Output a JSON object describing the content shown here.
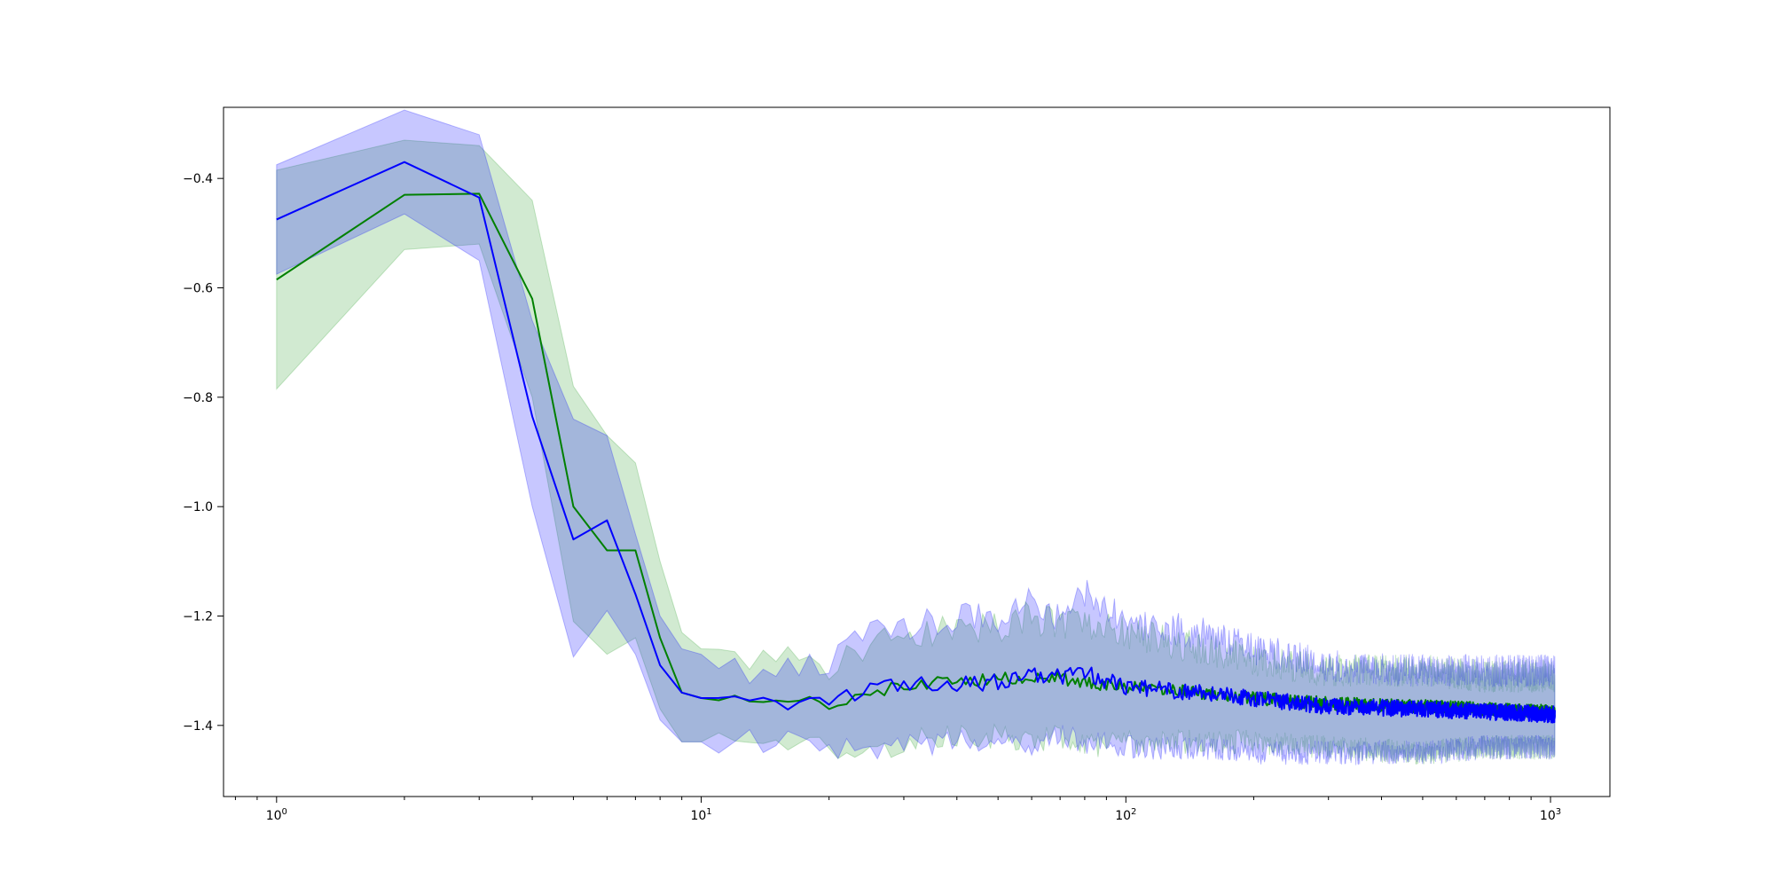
{
  "chart_data": {
    "type": "line",
    "title": "",
    "xlabel": "",
    "ylabel": "",
    "x_scale": "log",
    "xlim": [
      0.75,
      1380
    ],
    "ylim": [
      -1.53,
      -0.27
    ],
    "grid": false,
    "legend": "none",
    "x_ticks": [
      {
        "base": "10",
        "exp": "0",
        "value": 1
      },
      {
        "base": "10",
        "exp": "1",
        "value": 10
      },
      {
        "base": "10",
        "exp": "2",
        "value": 100
      },
      {
        "base": "10",
        "exp": "3",
        "value": 1000
      }
    ],
    "y_ticks": [
      {
        "label": "−0.4",
        "value": -0.4
      },
      {
        "label": "−0.6",
        "value": -0.6
      },
      {
        "label": "−0.8",
        "value": -0.8
      },
      {
        "label": "−1.0",
        "value": -1.0
      },
      {
        "label": "−1.2",
        "value": -1.2
      },
      {
        "label": "−1.4",
        "value": -1.4
      }
    ],
    "x_range": [
      1,
      1024
    ],
    "series": [
      {
        "color": "#008000",
        "band_color": "#2ca02c",
        "anchors_x": [
          1,
          2,
          3,
          4,
          5,
          6,
          7,
          8,
          9,
          10,
          12,
          15,
          20,
          25,
          30,
          40,
          50,
          60,
          70,
          80,
          100,
          150,
          200,
          300,
          500,
          700,
          1024
        ],
        "anchors_mean": [
          -0.585,
          -0.43,
          -0.428,
          -0.62,
          -1.0,
          -1.08,
          -1.08,
          -1.24,
          -1.34,
          -1.35,
          -1.35,
          -1.345,
          -1.36,
          -1.34,
          -1.325,
          -1.32,
          -1.315,
          -1.31,
          -1.315,
          -1.32,
          -1.33,
          -1.34,
          -1.35,
          -1.36,
          -1.365,
          -1.37,
          -1.375
        ],
        "anchors_upper": [
          -0.385,
          -0.33,
          -0.34,
          -0.44,
          -0.78,
          -0.87,
          -0.92,
          -1.1,
          -1.23,
          -1.26,
          -1.28,
          -1.27,
          -1.3,
          -1.26,
          -1.24,
          -1.22,
          -1.22,
          -1.2,
          -1.22,
          -1.21,
          -1.23,
          -1.26,
          -1.28,
          -1.3,
          -1.3,
          -1.31,
          -1.31
        ],
        "anchors_lower": [
          -0.785,
          -0.53,
          -0.52,
          -0.8,
          -1.21,
          -1.27,
          -1.24,
          -1.37,
          -1.43,
          -1.43,
          -1.42,
          -1.42,
          -1.44,
          -1.46,
          -1.43,
          -1.42,
          -1.42,
          -1.43,
          -1.42,
          -1.44,
          -1.43,
          -1.43,
          -1.43,
          -1.44,
          -1.45,
          -1.44,
          -1.44
        ],
        "noise": 0.012
      },
      {
        "color": "#0000ff",
        "band_color": "#0000ff",
        "anchors_x": [
          1,
          2,
          3,
          4,
          5,
          6,
          7,
          8,
          9,
          10,
          12,
          15,
          20,
          25,
          30,
          40,
          50,
          60,
          70,
          80,
          100,
          150,
          200,
          300,
          500,
          700,
          1024
        ],
        "anchors_mean": [
          -0.475,
          -0.37,
          -0.435,
          -0.835,
          -1.06,
          -1.025,
          -1.16,
          -1.29,
          -1.34,
          -1.35,
          -1.36,
          -1.36,
          -1.35,
          -1.335,
          -1.32,
          -1.325,
          -1.32,
          -1.305,
          -1.31,
          -1.305,
          -1.33,
          -1.34,
          -1.35,
          -1.365,
          -1.37,
          -1.375,
          -1.38
        ],
        "anchors_upper": [
          -0.375,
          -0.275,
          -0.32,
          -0.66,
          -0.84,
          -0.87,
          -1.05,
          -1.2,
          -1.26,
          -1.27,
          -1.3,
          -1.31,
          -1.28,
          -1.23,
          -1.22,
          -1.2,
          -1.2,
          -1.17,
          -1.2,
          -1.16,
          -1.21,
          -1.23,
          -1.26,
          -1.29,
          -1.3,
          -1.3,
          -1.3
        ],
        "anchors_lower": [
          -0.575,
          -0.465,
          -0.55,
          -1.0,
          -1.275,
          -1.19,
          -1.27,
          -1.39,
          -1.43,
          -1.43,
          -1.43,
          -1.43,
          -1.44,
          -1.45,
          -1.44,
          -1.43,
          -1.43,
          -1.44,
          -1.42,
          -1.43,
          -1.44,
          -1.44,
          -1.45,
          -1.45,
          -1.45,
          -1.44,
          -1.44
        ],
        "noise": 0.015
      }
    ]
  }
}
